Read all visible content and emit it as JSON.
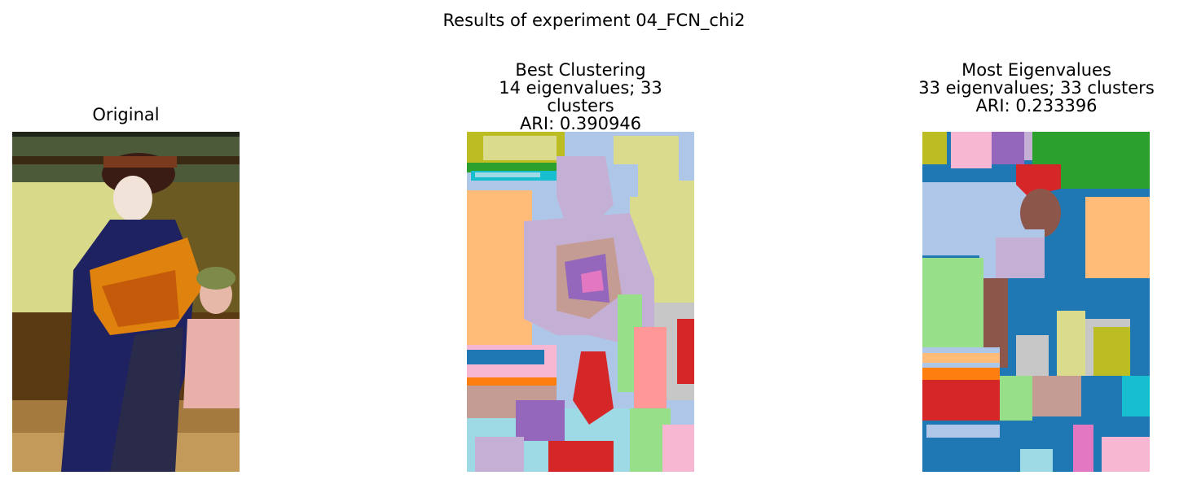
{
  "figure": {
    "suptitle": "Results of experiment 04_FCN_chi2"
  },
  "panels": [
    {
      "title": "Original",
      "image": "photo of a kabuki dancer in kimono with an orange obi on a wooden stage, a second seated dancer in pink behind"
    },
    {
      "title": "Best Clustering\n14 eigenvalues; 33 clusters\nARI: 0.390946",
      "image": "segmentation map of the photo in 33 cluster colors"
    },
    {
      "title": "Most Eigenvalues\n33 eigenvalues; 33 clusters\nARI: 0.233396",
      "image": "segmentation map of the photo in 33 cluster colors"
    }
  ],
  "colors": {
    "tab_blue": "#1f77b4",
    "tab_orange": "#ff7f0e",
    "tab_green": "#2ca02c",
    "tab_red": "#d62728",
    "tab_purple": "#9467bd",
    "tab_brown": "#8c564b",
    "tab_pink": "#e377c2",
    "tab_gray": "#7f7f7f",
    "tab_olive": "#bcbd22",
    "tab_cyan": "#17becf",
    "light_blue": "#aec7e8",
    "light_orange": "#ffbb78",
    "light_green": "#98df8a",
    "light_red": "#ff9896",
    "light_purple": "#c5b0d5",
    "light_brown": "#c49c94",
    "light_pink": "#f7b6d2",
    "light_gray": "#c7c7c7",
    "light_olive": "#dbdb8d",
    "light_cyan": "#9edae5"
  }
}
